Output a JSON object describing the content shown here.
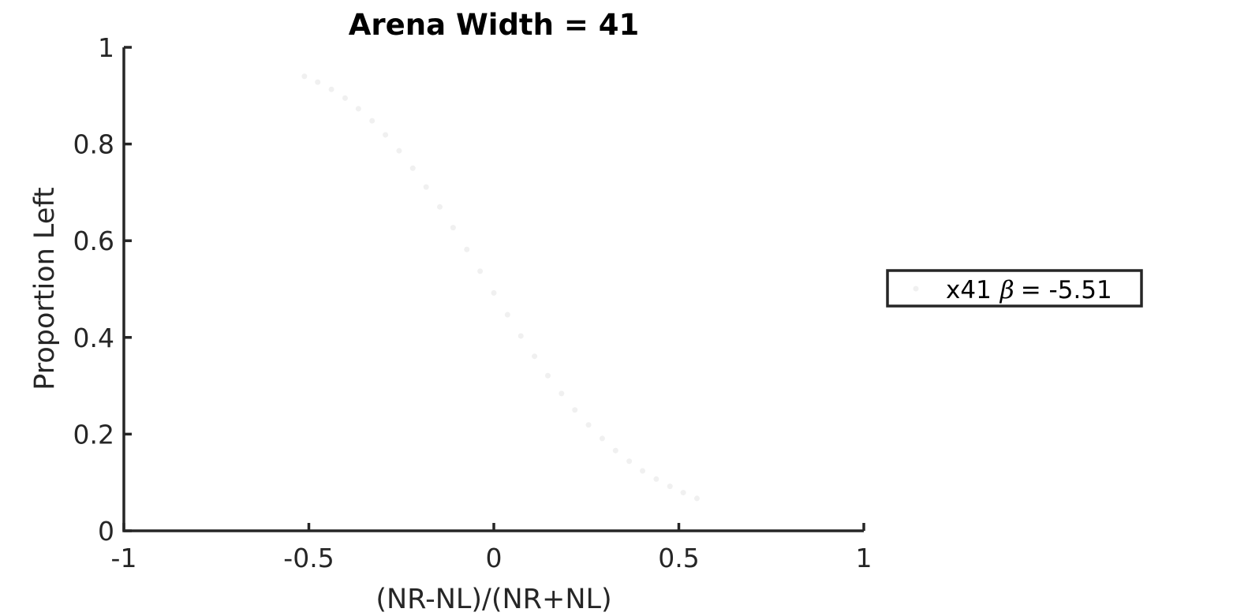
{
  "chart_data": {
    "type": "scatter",
    "title": "Arena Width =  41",
    "xlabel": "(NR-NL)/(NR+NL)",
    "ylabel": "Proportion Left",
    "xlim": [
      -1,
      1
    ],
    "ylim": [
      0,
      1
    ],
    "xticks": [
      -1,
      -0.5,
      0,
      0.5,
      1
    ],
    "yticks": [
      0,
      0.2,
      0.4,
      0.6,
      0.8,
      1
    ],
    "xtick_labels": [
      "-1",
      "-0.5",
      "0",
      "0.5",
      "1"
    ],
    "ytick_labels": [
      "0",
      "0.2",
      "0.4",
      "0.6",
      "0.8",
      "1"
    ],
    "grid": false,
    "legend_position": "right",
    "series": [
      {
        "legend_label": "x41",
        "legend_beta_symbol": "β",
        "legend_beta_value": "=  -5.51",
        "color": "#f0f0f0",
        "x": [
          -0.512,
          -0.476,
          -0.439,
          -0.402,
          -0.366,
          -0.329,
          -0.293,
          -0.256,
          -0.219,
          -0.183,
          -0.146,
          -0.11,
          -0.073,
          -0.037,
          0.0,
          0.037,
          0.073,
          0.11,
          0.146,
          0.183,
          0.219,
          0.256,
          0.293,
          0.329,
          0.366,
          0.402,
          0.439,
          0.476,
          0.512,
          0.549
        ],
        "y": [
          0.94,
          0.928,
          0.913,
          0.895,
          0.873,
          0.848,
          0.819,
          0.786,
          0.75,
          0.711,
          0.67,
          0.627,
          0.582,
          0.537,
          0.492,
          0.447,
          0.403,
          0.361,
          0.321,
          0.284,
          0.25,
          0.219,
          0.191,
          0.166,
          0.144,
          0.124,
          0.107,
          0.092,
          0.079,
          0.067
        ]
      }
    ]
  }
}
